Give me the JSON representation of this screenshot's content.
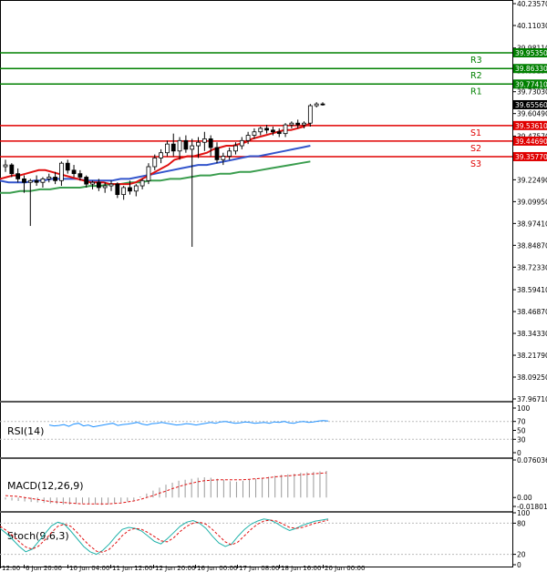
{
  "chart_data": {
    "type": "candlestick",
    "price_axis": {
      "ylim": [
        37.9671,
        40.2357
      ],
      "tick_labels": [
        "40.23570",
        "40.11030",
        "39.98110",
        "39.85150",
        "39.73030",
        "39.60490",
        "39.47570",
        "39.35050",
        "39.22490",
        "39.09950",
        "38.97410",
        "38.84870",
        "38.72330",
        "38.59410",
        "38.46870",
        "38.34330",
        "38.21790",
        "38.09250",
        "37.96710"
      ]
    },
    "time_axis": {
      "tick_labels": [
        "12:00",
        "6 Jun 20:00",
        "10 Jun 04:00",
        "11 Jun 12:00",
        "12 Jun 20:00",
        "16 Jun 00:00",
        "17 Jun 08:00",
        "18 Jun 16:00",
        "20 Jun 00:00"
      ]
    },
    "levels": [
      {
        "label": "R3",
        "value": 39.9535,
        "tag": "39.95350",
        "color": "#008000"
      },
      {
        "label": "R2",
        "value": 39.8633,
        "tag": "39.86330",
        "color": "#008000"
      },
      {
        "label": "R1",
        "value": 39.7741,
        "tag": "39.77410",
        "color": "#008000"
      },
      {
        "label": "S1",
        "value": 39.5361,
        "tag": "39.53610",
        "color": "#e00000"
      },
      {
        "label": "S2",
        "value": 39.4469,
        "tag": "39.44690",
        "color": "#e00000"
      },
      {
        "label": "S3",
        "value": 39.3577,
        "tag": "39.35770",
        "color": "#e00000"
      }
    ],
    "current_price": {
      "value": 39.6556,
      "tag": "39.65560"
    },
    "candles": [
      {
        "o": 39.3,
        "h": 39.34,
        "l": 39.27,
        "c": 39.31
      },
      {
        "o": 39.31,
        "h": 39.32,
        "l": 39.24,
        "c": 39.26
      },
      {
        "o": 39.26,
        "h": 39.29,
        "l": 39.21,
        "c": 39.23
      },
      {
        "o": 39.23,
        "h": 39.25,
        "l": 39.15,
        "c": 39.21
      },
      {
        "o": 39.21,
        "h": 39.23,
        "l": 38.96,
        "c": 39.22
      },
      {
        "o": 39.22,
        "h": 39.25,
        "l": 39.19,
        "c": 39.21
      },
      {
        "o": 39.21,
        "h": 39.24,
        "l": 39.18,
        "c": 39.23
      },
      {
        "o": 39.23,
        "h": 39.26,
        "l": 39.21,
        "c": 39.24
      },
      {
        "o": 39.24,
        "h": 39.27,
        "l": 39.2,
        "c": 39.22
      },
      {
        "o": 39.22,
        "h": 39.33,
        "l": 39.19,
        "c": 39.32
      },
      {
        "o": 39.32,
        "h": 39.34,
        "l": 39.26,
        "c": 39.28
      },
      {
        "o": 39.28,
        "h": 39.31,
        "l": 39.24,
        "c": 39.26
      },
      {
        "o": 39.26,
        "h": 39.28,
        "l": 39.22,
        "c": 39.24
      },
      {
        "o": 39.24,
        "h": 39.25,
        "l": 39.18,
        "c": 39.2
      },
      {
        "o": 39.2,
        "h": 39.22,
        "l": 39.17,
        "c": 39.21
      },
      {
        "o": 39.21,
        "h": 39.23,
        "l": 39.16,
        "c": 39.18
      },
      {
        "o": 39.18,
        "h": 39.21,
        "l": 39.15,
        "c": 39.19
      },
      {
        "o": 39.19,
        "h": 39.22,
        "l": 39.16,
        "c": 39.2
      },
      {
        "o": 39.2,
        "h": 39.21,
        "l": 39.12,
        "c": 39.14
      },
      {
        "o": 39.14,
        "h": 39.19,
        "l": 39.11,
        "c": 39.18
      },
      {
        "o": 39.18,
        "h": 39.22,
        "l": 39.14,
        "c": 39.16
      },
      {
        "o": 39.16,
        "h": 39.2,
        "l": 39.13,
        "c": 39.19
      },
      {
        "o": 39.19,
        "h": 39.23,
        "l": 39.17,
        "c": 39.22
      },
      {
        "o": 39.22,
        "h": 39.32,
        "l": 39.2,
        "c": 39.3
      },
      {
        "o": 39.3,
        "h": 39.37,
        "l": 39.28,
        "c": 39.35
      },
      {
        "o": 39.35,
        "h": 39.4,
        "l": 39.32,
        "c": 39.38
      },
      {
        "o": 39.38,
        "h": 39.45,
        "l": 39.36,
        "c": 39.43
      },
      {
        "o": 39.43,
        "h": 39.49,
        "l": 39.36,
        "c": 39.39
      },
      {
        "o": 39.39,
        "h": 39.47,
        "l": 39.34,
        "c": 39.45
      },
      {
        "o": 39.45,
        "h": 39.48,
        "l": 39.38,
        "c": 39.4
      },
      {
        "o": 39.4,
        "h": 39.46,
        "l": 38.84,
        "c": 39.42
      },
      {
        "o": 39.42,
        "h": 39.47,
        "l": 39.35,
        "c": 39.44
      },
      {
        "o": 39.44,
        "h": 39.5,
        "l": 39.39,
        "c": 39.46
      },
      {
        "o": 39.46,
        "h": 39.48,
        "l": 39.36,
        "c": 39.41
      },
      {
        "o": 39.41,
        "h": 39.44,
        "l": 39.32,
        "c": 39.34
      },
      {
        "o": 39.34,
        "h": 39.38,
        "l": 39.31,
        "c": 39.36
      },
      {
        "o": 39.36,
        "h": 39.41,
        "l": 39.34,
        "c": 39.39
      },
      {
        "o": 39.39,
        "h": 39.44,
        "l": 39.37,
        "c": 39.42
      },
      {
        "o": 39.42,
        "h": 39.47,
        "l": 39.4,
        "c": 39.45
      },
      {
        "o": 39.45,
        "h": 39.5,
        "l": 39.43,
        "c": 39.48
      },
      {
        "o": 39.48,
        "h": 39.52,
        "l": 39.46,
        "c": 39.5
      },
      {
        "o": 39.5,
        "h": 39.53,
        "l": 39.48,
        "c": 39.52
      },
      {
        "o": 39.52,
        "h": 39.54,
        "l": 39.49,
        "c": 39.51
      },
      {
        "o": 39.51,
        "h": 39.53,
        "l": 39.48,
        "c": 39.5
      },
      {
        "o": 39.5,
        "h": 39.52,
        "l": 39.47,
        "c": 39.49
      },
      {
        "o": 39.49,
        "h": 39.55,
        "l": 39.47,
        "c": 39.54
      },
      {
        "o": 39.54,
        "h": 39.56,
        "l": 39.52,
        "c": 39.55
      },
      {
        "o": 39.55,
        "h": 39.57,
        "l": 39.52,
        "c": 39.54
      },
      {
        "o": 39.54,
        "h": 39.56,
        "l": 39.52,
        "c": 39.55
      },
      {
        "o": 39.55,
        "h": 39.66,
        "l": 39.53,
        "c": 39.65
      },
      {
        "o": 39.65,
        "h": 39.67,
        "l": 39.64,
        "c": 39.66
      },
      {
        "o": 39.66,
        "h": 39.67,
        "l": 39.65,
        "c": 39.6556
      }
    ],
    "ma_red": [
      39.23,
      39.24,
      39.25,
      39.25,
      39.26,
      39.27,
      39.28,
      39.28,
      39.27,
      39.26,
      39.25,
      39.24,
      39.23,
      39.22,
      39.21,
      39.21,
      39.21,
      39.2,
      39.2,
      39.2,
      39.2,
      39.21,
      39.23,
      39.25,
      39.27,
      39.29,
      39.31,
      39.34,
      39.35,
      39.36,
      39.36,
      39.37,
      39.38,
      39.4,
      39.41,
      39.42,
      39.42,
      39.43,
      39.44,
      39.46,
      39.47,
      39.48,
      39.49,
      39.5,
      39.51,
      39.51,
      39.52,
      39.53,
      39.55
    ],
    "ma_blue": [
      39.22,
      39.21,
      39.21,
      39.21,
      39.22,
      39.22,
      39.23,
      39.23,
      39.23,
      39.23,
      39.22,
      39.22,
      39.22,
      39.22,
      39.23,
      39.23,
      39.24,
      39.25,
      39.26,
      39.27,
      39.28,
      39.29,
      39.3,
      39.31,
      39.31,
      39.32,
      39.33,
      39.34,
      39.35,
      39.36,
      39.36,
      39.37,
      39.38,
      39.39,
      39.4,
      39.41,
      39.42
    ],
    "ma_green": [
      39.15,
      39.15,
      39.16,
      39.16,
      39.17,
      39.17,
      39.18,
      39.18,
      39.18,
      39.19,
      39.19,
      39.2,
      39.2,
      39.21,
      39.21,
      39.22,
      39.22,
      39.23,
      39.23,
      39.24,
      39.25,
      39.25,
      39.26,
      39.26,
      39.27,
      39.27,
      39.28,
      39.29,
      39.3,
      39.31,
      39.32,
      39.33
    ],
    "rsi": {
      "label": "RSI(14)",
      "ylim": [
        0,
        100
      ],
      "tick_labels": [
        "100",
        "70",
        "50",
        "30",
        "0"
      ],
      "values": [
        62,
        60,
        61,
        63,
        59,
        64,
        66,
        60,
        62,
        58,
        60,
        62,
        64,
        66,
        61,
        63,
        64,
        66,
        68,
        64,
        62,
        65,
        66,
        68,
        66,
        64,
        62,
        63,
        65,
        64,
        62,
        64,
        66,
        68,
        66,
        69,
        70,
        68,
        66,
        67,
        69,
        68,
        66,
        67,
        68,
        66,
        69,
        68,
        70,
        67,
        66,
        69,
        70,
        68,
        69,
        71,
        72,
        71
      ]
    },
    "macd": {
      "label": "MACD(12,26,9)",
      "tick_labels": [
        "0.076036",
        "0.00",
        "-0.018013"
      ],
      "ylim": [
        -0.018013,
        0.076036
      ],
      "histogram": [
        -0.004,
        -0.006,
        -0.007,
        -0.008,
        -0.009,
        -0.01,
        -0.011,
        -0.012,
        -0.013,
        -0.014,
        -0.014,
        -0.013,
        -0.012,
        -0.013,
        -0.014,
        -0.015,
        -0.014,
        -0.012,
        -0.01,
        -0.008,
        -0.006,
        0.002,
        0.008,
        0.014,
        0.02,
        0.026,
        0.03,
        0.034,
        0.036,
        0.038,
        0.04,
        0.041,
        0.04,
        0.038,
        0.036,
        0.033,
        0.032,
        0.034,
        0.036,
        0.038,
        0.04,
        0.042,
        0.044,
        0.046,
        0.047,
        0.048,
        0.05,
        0.051,
        0.052,
        0.053,
        0.054
      ],
      "signal": [
        0.004,
        0.003,
        0.002,
        0.0,
        -0.002,
        -0.004,
        -0.006,
        -0.008,
        -0.009,
        -0.01,
        -0.011,
        -0.012,
        -0.013,
        -0.013,
        -0.013,
        -0.013,
        -0.013,
        -0.012,
        -0.011,
        -0.009,
        -0.007,
        -0.004,
        0.0,
        0.004,
        0.009,
        0.013,
        0.018,
        0.022,
        0.026,
        0.029,
        0.032,
        0.034,
        0.035,
        0.036,
        0.036,
        0.036,
        0.036,
        0.036,
        0.037,
        0.038,
        0.039,
        0.04,
        0.042,
        0.043,
        0.044,
        0.045,
        0.046,
        0.047,
        0.048,
        0.049,
        0.05
      ]
    },
    "stoch": {
      "label": "Stoch(9,6,3)",
      "ylim": [
        0,
        100
      ],
      "tick_labels": [
        "100",
        "80",
        "20",
        "0"
      ],
      "main": [
        70,
        60,
        48,
        35,
        25,
        30,
        45,
        60,
        75,
        82,
        78,
        65,
        50,
        35,
        25,
        20,
        28,
        40,
        55,
        68,
        72,
        70,
        65,
        55,
        45,
        40,
        50,
        62,
        74,
        82,
        85,
        80,
        70,
        55,
        42,
        35,
        40,
        55,
        68,
        78,
        84,
        88,
        86,
        80,
        72,
        66,
        70,
        76,
        80,
        84,
        86,
        88
      ],
      "signal": [
        74,
        66,
        56,
        44,
        34,
        30,
        36,
        48,
        62,
        74,
        78,
        74,
        62,
        48,
        36,
        26,
        24,
        30,
        42,
        56,
        66,
        70,
        68,
        62,
        54,
        46,
        44,
        52,
        64,
        74,
        80,
        82,
        78,
        68,
        56,
        44,
        38,
        44,
        56,
        68,
        78,
        84,
        86,
        84,
        78,
        72,
        70,
        72,
        76,
        80,
        83,
        86
      ]
    }
  }
}
